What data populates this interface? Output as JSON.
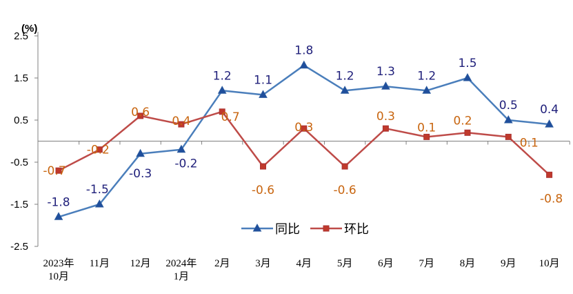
{
  "chart_data": {
    "type": "line",
    "unit_label": "(%)",
    "ylim": [
      -2.5,
      2.5
    ],
    "yticks": [
      "2.5",
      "1.5",
      "0.5",
      "-0.5",
      "-1.5",
      "-2.5"
    ],
    "ytick_values": [
      2.5,
      1.5,
      0.5,
      -0.5,
      -1.5,
      -2.5
    ],
    "categories": [
      [
        "2023年",
        "10月"
      ],
      [
        "11月"
      ],
      [
        "12月"
      ],
      [
        "2024年",
        "1月"
      ],
      [
        "2月"
      ],
      [
        "3月"
      ],
      [
        "4月"
      ],
      [
        "5月"
      ],
      [
        "6月"
      ],
      [
        "7月"
      ],
      [
        "8月"
      ],
      [
        "9月"
      ],
      [
        "10月"
      ]
    ],
    "series": [
      {
        "name": "同比",
        "color": "#4a7ebb",
        "marker": "triangle",
        "marker_color": "#1f4e9c",
        "label_color": "#1f1f7a",
        "values": [
          -1.8,
          -1.5,
          -0.3,
          -0.2,
          1.2,
          1.1,
          1.8,
          1.2,
          1.3,
          1.2,
          1.5,
          0.5,
          0.4
        ],
        "labels": [
          "-1.8",
          "-1.5",
          "-0.3",
          "-0.2",
          "1.2",
          "1.1",
          "1.8",
          "1.2",
          "1.3",
          "1.2",
          "1.5",
          "0.5",
          "0.4"
        ]
      },
      {
        "name": "环比",
        "color": "#be4b48",
        "marker": "square",
        "marker_color": "#c0392b",
        "label_color": "#c8650f",
        "values": [
          -0.7,
          -0.2,
          0.6,
          0.4,
          0.7,
          -0.6,
          0.3,
          -0.6,
          0.3,
          0.1,
          0.2,
          0.1,
          -0.8
        ],
        "labels": [
          "-0.7",
          "-0.2",
          "0.6",
          "0.4",
          "0.7",
          "-0.6",
          "0.3",
          "-0.6",
          "0.3",
          "0.1",
          "0.2",
          "0.1",
          "-0.8"
        ]
      }
    ],
    "legend": "bottom-center",
    "grid": false
  }
}
